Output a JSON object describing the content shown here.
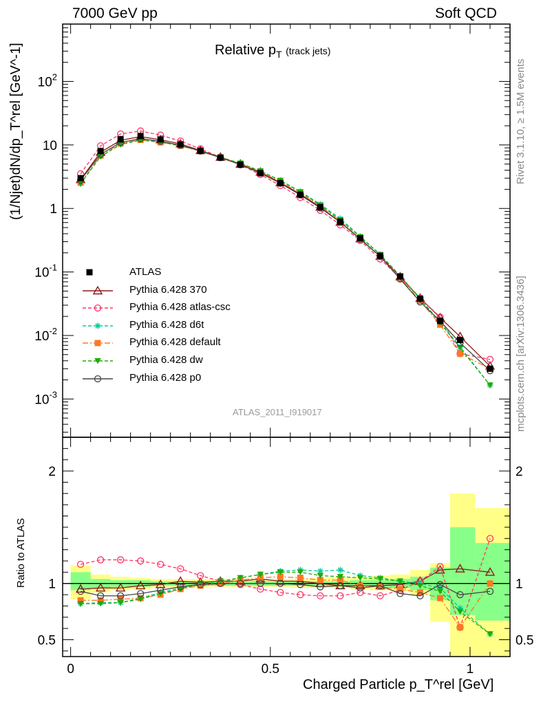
{
  "header": {
    "left": "7000 GeV pp",
    "right": "Soft QCD"
  },
  "side_text": {
    "rivet": "Rivet 3.1.10, ≥ 1.5M events",
    "mcplots": "mcplots.cern.ch [arXiv:1306.3436]"
  },
  "analysis_id": "ATLAS_2011_I919017",
  "chart_data": {
    "type": "line",
    "title": "Relative p_T (track jets)",
    "title_main": "Relative p",
    "title_sub": "T",
    "title_extra": "(track jets)",
    "ylabel": "(1/Njet)dN/dp_T^rel [GeV^-1]",
    "ylabel_ratio": "Ratio to ATLAS",
    "xlabel": "Charged Particle p_T^rel [GeV]",
    "xlim": [
      -0.02,
      1.1
    ],
    "ylim": [
      0.00025,
      800
    ],
    "ratio_ylim": [
      0.35,
      2.3
    ],
    "x_ticks": [
      "0",
      "0.5",
      "1"
    ],
    "y_ticks": [
      "10^-3",
      "10^-2",
      "10^-1",
      "1",
      "10",
      "10^2"
    ],
    "ratio_ticks": [
      "0.5",
      "1",
      "2"
    ],
    "log_y": true,
    "legend_position": "lower-left",
    "x": [
      0.025,
      0.075,
      0.125,
      0.175,
      0.225,
      0.275,
      0.325,
      0.375,
      0.425,
      0.475,
      0.525,
      0.575,
      0.625,
      0.675,
      0.725,
      0.775,
      0.825,
      0.875,
      0.925,
      0.975,
      1.05
    ],
    "data": {
      "name": "ATLAS",
      "values": [
        3.0,
        8.0,
        12.3,
        13.8,
        12.2,
        10.2,
        8.1,
        6.3,
        4.9,
        3.6,
        2.5,
        1.65,
        1.05,
        0.62,
        0.34,
        0.18,
        0.085,
        0.038,
        0.017,
        0.0085,
        0.003
      ],
      "errors": [
        0.2,
        0.3,
        0.4,
        0.4,
        0.35,
        0.3,
        0.25,
        0.2,
        0.15,
        0.1,
        0.08,
        0.05,
        0.03,
        0.02,
        0.01,
        0.006,
        0.003,
        0.0015,
        0.0008,
        0.0006,
        0.0003
      ]
    },
    "band_yellow": [
      [
        0.86,
        1.16
      ],
      [
        0.92,
        1.08
      ],
      [
        0.94,
        1.06
      ],
      [
        0.95,
        1.05
      ],
      [
        0.96,
        1.04
      ],
      [
        0.96,
        1.04
      ],
      [
        0.97,
        1.04
      ],
      [
        0.97,
        1.04
      ],
      [
        0.97,
        1.04
      ],
      [
        0.97,
        1.04
      ],
      [
        0.97,
        1.04
      ],
      [
        0.96,
        1.04
      ],
      [
        0.96,
        1.05
      ],
      [
        0.96,
        1.05
      ],
      [
        0.95,
        1.06
      ],
      [
        0.94,
        1.07
      ],
      [
        0.93,
        1.08
      ],
      [
        0.9,
        1.12
      ],
      [
        0.66,
        1.18
      ],
      [
        0.35,
        1.8
      ],
      [
        0.35,
        1.67
      ]
    ],
    "band_green": [
      [
        0.94,
        1.1
      ],
      [
        0.96,
        1.04
      ],
      [
        0.97,
        1.03
      ],
      [
        0.97,
        1.03
      ],
      [
        0.98,
        1.02
      ],
      [
        0.98,
        1.02
      ],
      [
        0.98,
        1.02
      ],
      [
        0.98,
        1.02
      ],
      [
        0.98,
        1.02
      ],
      [
        0.98,
        1.02
      ],
      [
        0.98,
        1.02
      ],
      [
        0.98,
        1.02
      ],
      [
        0.98,
        1.02
      ],
      [
        0.98,
        1.02
      ],
      [
        0.97,
        1.03
      ],
      [
        0.97,
        1.03
      ],
      [
        0.96,
        1.04
      ],
      [
        0.94,
        1.06
      ],
      [
        0.85,
        1.14
      ],
      [
        0.72,
        1.5
      ],
      [
        0.67,
        1.36
      ]
    ],
    "series": [
      {
        "name": "Pythia 6.428 370",
        "color": "#8b1a1a",
        "dash": "",
        "marker": "triangle-open",
        "ratio": [
          0.95,
          0.96,
          0.96,
          0.98,
          0.99,
          1.02,
          1.01,
          1.02,
          1.02,
          1.04,
          1.02,
          1.02,
          1.0,
          0.98,
          0.98,
          0.98,
          0.99,
          1.02,
          1.12,
          1.13,
          1.1
        ]
      },
      {
        "name": "Pythia 6.428 atlas-csc",
        "color": "#ff3366",
        "dash": "5,3",
        "marker": "circle-open",
        "ratio": [
          1.17,
          1.21,
          1.21,
          1.2,
          1.17,
          1.13,
          1.07,
          1.02,
          0.99,
          0.95,
          0.92,
          0.9,
          0.89,
          0.89,
          0.92,
          0.89,
          0.94,
          1.02,
          1.15,
          0.61,
          1.4
        ]
      },
      {
        "name": "Pythia 6.428 d6t",
        "color": "#00cc99",
        "dash": "5,3",
        "marker": "asterisk",
        "ratio": [
          0.82,
          0.83,
          0.83,
          0.87,
          0.92,
          0.96,
          0.99,
          1.01,
          1.05,
          1.08,
          1.11,
          1.12,
          1.11,
          1.12,
          1.07,
          1.05,
          1.02,
          1.0,
          0.96,
          0.78,
          0.55
        ]
      },
      {
        "name": "Pythia 6.428 default",
        "color": "#ff7722",
        "dash": "8,3,2,3",
        "marker": "square",
        "ratio": [
          0.85,
          0.85,
          0.86,
          0.87,
          0.9,
          0.95,
          0.98,
          1.0,
          1.03,
          1.05,
          1.06,
          1.05,
          1.03,
          1.03,
          0.98,
          0.97,
          0.95,
          0.92,
          0.87,
          0.61,
          1.0
        ]
      },
      {
        "name": "Pythia 6.428 dw",
        "color": "#22aa00",
        "dash": "5,3",
        "marker": "triangle-down",
        "ratio": [
          0.82,
          0.82,
          0.83,
          0.86,
          0.91,
          0.95,
          1.0,
          1.02,
          1.05,
          1.08,
          1.1,
          1.1,
          1.07,
          1.06,
          1.05,
          1.04,
          1.02,
          0.98,
          0.93,
          0.75,
          0.55
        ]
      },
      {
        "name": "Pythia 6.428 p0",
        "color": "#444444",
        "dash": "",
        "marker": "circle-open",
        "ratio": [
          0.93,
          0.89,
          0.89,
          0.91,
          0.94,
          0.97,
          0.99,
          1.0,
          1.0,
          1.0,
          1.0,
          0.99,
          0.97,
          0.98,
          0.96,
          0.98,
          0.91,
          0.89,
          0.99,
          0.9,
          0.93
        ]
      }
    ]
  }
}
